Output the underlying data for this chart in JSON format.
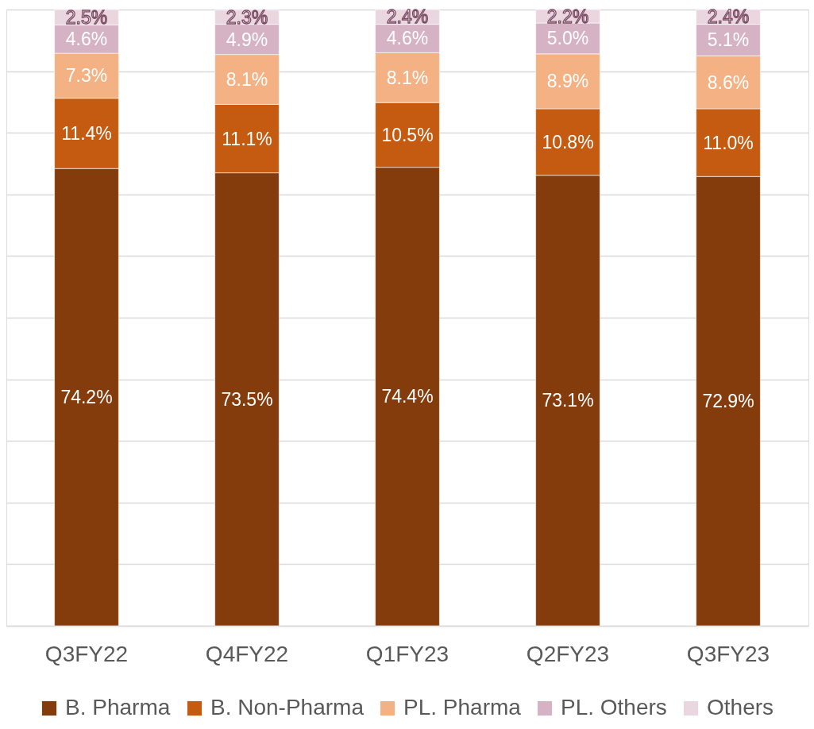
{
  "chart_data": {
    "type": "bar",
    "stacked": true,
    "categories": [
      "Q3FY22",
      "Q4FY22",
      "Q1FY23",
      "Q2FY23",
      "Q3FY23"
    ],
    "series": [
      {
        "name": "B. Pharma",
        "color": "#843c0c",
        "values": [
          74.2,
          73.5,
          74.4,
          73.1,
          72.9
        ],
        "value_labels": [
          "74.2%",
          "73.5%",
          "74.4%",
          "73.1%",
          "72.9%"
        ]
      },
      {
        "name": "B. Non-Pharma",
        "color": "#c55a11",
        "values": [
          11.4,
          11.1,
          10.5,
          10.8,
          11.0
        ],
        "value_labels": [
          "11.4%",
          "11.1%",
          "10.5%",
          "10.8%",
          "11.0%"
        ]
      },
      {
        "name": "PL. Pharma",
        "color": "#f4b183",
        "values": [
          7.3,
          8.1,
          8.1,
          8.9,
          8.6
        ],
        "value_labels": [
          "7.3%",
          "8.1%",
          "8.1%",
          "8.9%",
          "8.6%"
        ]
      },
      {
        "name": "PL. Others",
        "color": "#d5b3c5",
        "values": [
          4.6,
          4.9,
          4.6,
          5.0,
          5.1
        ],
        "value_labels": [
          "4.6%",
          "4.9%",
          "4.6%",
          "5.0%",
          "5.1%"
        ]
      },
      {
        "name": "Others",
        "color": "#ead6df",
        "values": [
          2.5,
          2.3,
          2.4,
          2.2,
          2.4
        ],
        "value_labels": [
          "2.5%",
          "2.3%",
          "2.4%",
          "2.2%",
          "2.4%"
        ]
      }
    ],
    "ylim": [
      0,
      100
    ],
    "yticks": [
      {
        "value": 0,
        "label": null
      },
      {
        "value": 10,
        "label": null
      },
      {
        "value": 20,
        "label": null
      },
      {
        "value": 30,
        "label": null
      },
      {
        "value": 40,
        "label": null
      },
      {
        "value": 50,
        "label": null
      },
      {
        "value": 60,
        "label": null
      },
      {
        "value": 70,
        "label": null
      },
      {
        "value": 80,
        "label": null
      },
      {
        "value": 90,
        "label": null
      },
      {
        "value": 100,
        "label": null
      }
    ],
    "grid": "y",
    "legend": "bottom",
    "tick_labels": "x"
  }
}
